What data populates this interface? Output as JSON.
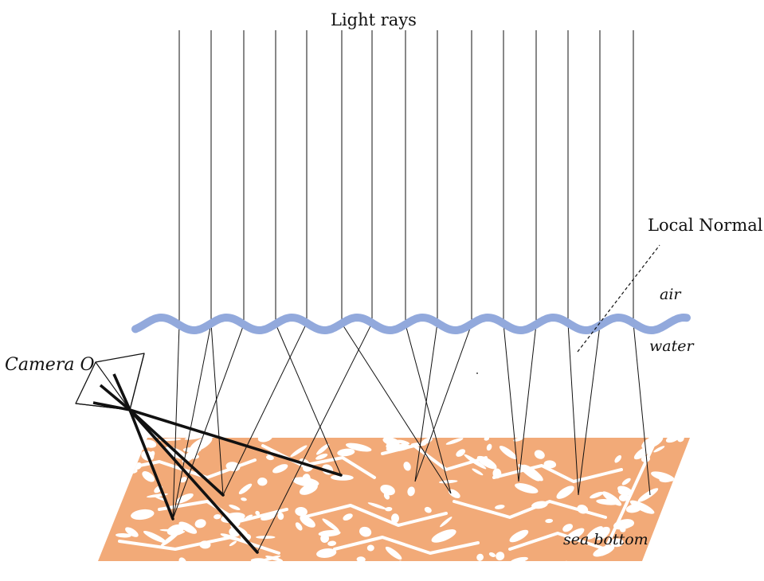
{
  "labels": {
    "light_rays": "Light rays",
    "local_normal": "Local Normal",
    "air": "air",
    "water": "water",
    "camera": "Camera O",
    "sea_bottom": "sea bottom"
  },
  "colors": {
    "water_surface": "#92a9dc",
    "sea_bottom": "#f2aa78",
    "rays": "#111111"
  }
}
